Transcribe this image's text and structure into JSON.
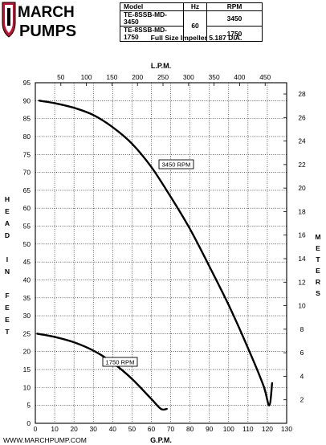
{
  "logo": {
    "line1": "MARCH",
    "line2": "PUMPS"
  },
  "spec_table": {
    "headers": [
      "Model",
      "Hz",
      "RPM"
    ],
    "models": [
      "TE-8SSB-MD-3450",
      "TE-8SSB-MD-1750"
    ],
    "hz": "60",
    "rpms": [
      "3450",
      "1750"
    ]
  },
  "impeller_note": "Full Size Impeller 5.187 DIA.",
  "footer_url": "WWW.MARCHPUMP.COM",
  "chart_data": {
    "type": "line",
    "title": "",
    "xlabel": "G.P.M.",
    "x2label": "L.P.M.",
    "ylabel": "H E A D   I N   F E E T",
    "y2label": "M E T E R S",
    "xlim": [
      0,
      130
    ],
    "ylim": [
      0,
      95
    ],
    "x2lim": [
      0,
      492.1
    ],
    "y2lim": [
      0,
      28.956
    ],
    "x_ticks": [
      0,
      10,
      20,
      30,
      40,
      50,
      60,
      70,
      80,
      90,
      100,
      110,
      120,
      130
    ],
    "y_ticks": [
      0,
      5,
      10,
      15,
      20,
      25,
      30,
      35,
      40,
      45,
      50,
      55,
      60,
      65,
      70,
      75,
      80,
      85,
      90,
      95
    ],
    "x2_ticks": [
      50,
      100,
      150,
      200,
      250,
      300,
      350,
      400,
      450
    ],
    "y2_ticks": [
      2,
      4,
      6,
      8,
      10,
      12,
      14,
      16,
      18,
      20,
      22,
      24,
      26,
      28
    ],
    "grid": true,
    "series": [
      {
        "name": "3450 RPM",
        "x": [
          2,
          10,
          20,
          30,
          40,
          50,
          60,
          70,
          80,
          90,
          100,
          110,
          118,
          121,
          122.5
        ],
        "y": [
          90,
          89.3,
          88,
          86,
          82.6,
          78,
          71.5,
          63.2,
          54.2,
          43.8,
          33,
          21,
          10.5,
          5,
          11.2
        ]
      },
      {
        "name": "1750 RPM",
        "x": [
          1,
          10,
          20,
          30,
          40,
          50,
          60,
          65,
          68
        ],
        "y": [
          25,
          24.1,
          22.6,
          20.3,
          16.9,
          12.4,
          6.8,
          4,
          4
        ]
      }
    ],
    "series_labels": [
      "3450 RPM",
      "1750 RPM"
    ]
  }
}
